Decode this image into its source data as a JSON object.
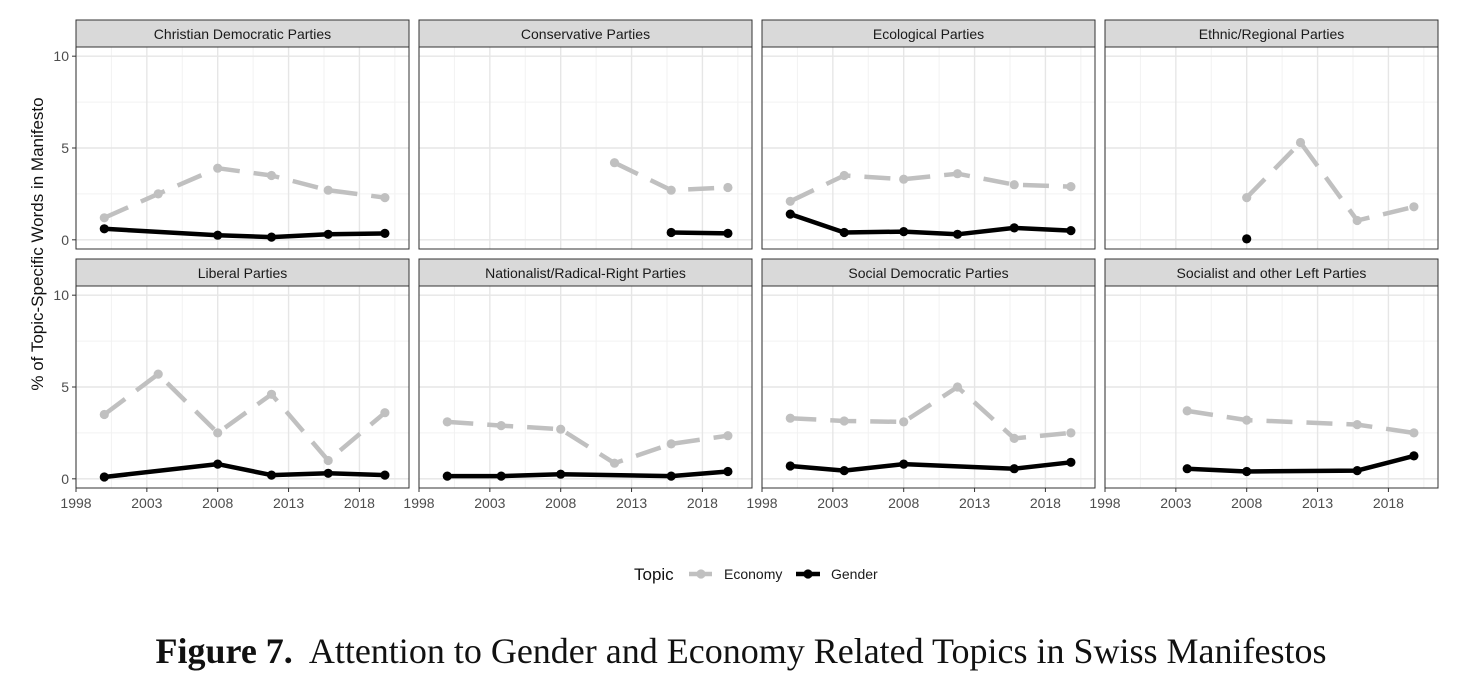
{
  "caption": {
    "label": "Figure 7.",
    "text": "Attention to Gender and Economy Related Topics in Swiss Manifestos"
  },
  "chart_data": {
    "type": "line",
    "ylabel": "% of Topic-Specific Words in Manifesto",
    "xlabel": "",
    "xlim": [
      1998,
      2021.5
    ],
    "ylim": [
      -0.5,
      10.5
    ],
    "x_ticks": [
      1998,
      2003,
      2008,
      2013,
      2018
    ],
    "y_ticks": [
      0,
      5,
      10
    ],
    "legend": {
      "title": "Topic",
      "position": "bottom",
      "entries": [
        {
          "name": "Economy",
          "color": "#c0c0c0",
          "dashed": true
        },
        {
          "name": "Gender",
          "color": "#000000",
          "dashed": false
        }
      ]
    },
    "panels": [
      {
        "title": "Christian Democratic Parties",
        "series": [
          {
            "name": "Economy",
            "points": [
              [
                2000,
                1.2
              ],
              [
                2003.8,
                2.5
              ],
              [
                2008,
                3.9
              ],
              [
                2011.8,
                3.5
              ],
              [
                2015.8,
                2.7
              ],
              [
                2019.8,
                2.3
              ]
            ]
          },
          {
            "name": "Gender",
            "points": [
              [
                2000,
                0.6
              ],
              [
                2008,
                0.25
              ],
              [
                2011.8,
                0.15
              ],
              [
                2015.8,
                0.3
              ],
              [
                2019.8,
                0.35
              ]
            ]
          }
        ]
      },
      {
        "title": "Conservative Parties",
        "series": [
          {
            "name": "Economy",
            "points": [
              [
                2011.8,
                4.2
              ],
              [
                2015.8,
                2.7
              ],
              [
                2019.8,
                2.85
              ]
            ]
          },
          {
            "name": "Gender",
            "points": [
              [
                2015.8,
                0.4
              ],
              [
                2019.8,
                0.35
              ]
            ]
          }
        ]
      },
      {
        "title": "Ecological Parties",
        "series": [
          {
            "name": "Economy",
            "points": [
              [
                2000,
                2.1
              ],
              [
                2003.8,
                3.5
              ],
              [
                2008,
                3.3
              ],
              [
                2011.8,
                3.6
              ],
              [
                2015.8,
                3.0
              ],
              [
                2019.8,
                2.9
              ]
            ]
          },
          {
            "name": "Gender",
            "points": [
              [
                2000,
                1.4
              ],
              [
                2003.8,
                0.4
              ],
              [
                2008,
                0.45
              ],
              [
                2011.8,
                0.3
              ],
              [
                2015.8,
                0.65
              ],
              [
                2019.8,
                0.5
              ]
            ]
          }
        ]
      },
      {
        "title": "Ethnic/Regional Parties",
        "series": [
          {
            "name": "Economy",
            "points": [
              [
                2008,
                2.3
              ],
              [
                2011.8,
                5.3
              ],
              [
                2015.8,
                1.05
              ],
              [
                2019.8,
                1.8
              ]
            ]
          },
          {
            "name": "Gender",
            "points": [
              [
                2008,
                0.05
              ]
            ]
          }
        ]
      },
      {
        "title": "Liberal Parties",
        "series": [
          {
            "name": "Economy",
            "points": [
              [
                2000,
                3.5
              ],
              [
                2003.8,
                5.7
              ],
              [
                2008,
                2.5
              ],
              [
                2011.8,
                4.6
              ],
              [
                2015.8,
                1.0
              ],
              [
                2019.8,
                3.6
              ]
            ]
          },
          {
            "name": "Gender",
            "points": [
              [
                2000,
                0.1
              ],
              [
                2008,
                0.8
              ],
              [
                2011.8,
                0.2
              ],
              [
                2015.8,
                0.3
              ],
              [
                2019.8,
                0.2
              ]
            ]
          }
        ]
      },
      {
        "title": "Nationalist/Radical-Right Parties",
        "series": [
          {
            "name": "Economy",
            "points": [
              [
                2000,
                3.1
              ],
              [
                2003.8,
                2.9
              ],
              [
                2008,
                2.7
              ],
              [
                2011.8,
                0.85
              ],
              [
                2015.8,
                1.9
              ],
              [
                2019.8,
                2.35
              ]
            ]
          },
          {
            "name": "Gender",
            "points": [
              [
                2000,
                0.15
              ],
              [
                2003.8,
                0.15
              ],
              [
                2008,
                0.25
              ],
              [
                2015.8,
                0.15
              ],
              [
                2019.8,
                0.4
              ]
            ]
          }
        ]
      },
      {
        "title": "Social Democratic Parties",
        "series": [
          {
            "name": "Economy",
            "points": [
              [
                2000,
                3.3
              ],
              [
                2003.8,
                3.15
              ],
              [
                2008,
                3.1
              ],
              [
                2011.8,
                5.0
              ],
              [
                2015.8,
                2.2
              ],
              [
                2019.8,
                2.5
              ]
            ]
          },
          {
            "name": "Gender",
            "points": [
              [
                2000,
                0.7
              ],
              [
                2003.8,
                0.45
              ],
              [
                2008,
                0.8
              ],
              [
                2015.8,
                0.55
              ],
              [
                2019.8,
                0.9
              ]
            ]
          }
        ]
      },
      {
        "title": "Socialist and other Left Parties",
        "series": [
          {
            "name": "Economy",
            "points": [
              [
                2003.8,
                3.7
              ],
              [
                2008,
                3.2
              ],
              [
                2015.8,
                2.95
              ],
              [
                2019.8,
                2.5
              ]
            ]
          },
          {
            "name": "Gender",
            "points": [
              [
                2003.8,
                0.55
              ],
              [
                2008,
                0.4
              ],
              [
                2015.8,
                0.45
              ],
              [
                2019.8,
                1.25
              ]
            ]
          }
        ]
      }
    ]
  }
}
